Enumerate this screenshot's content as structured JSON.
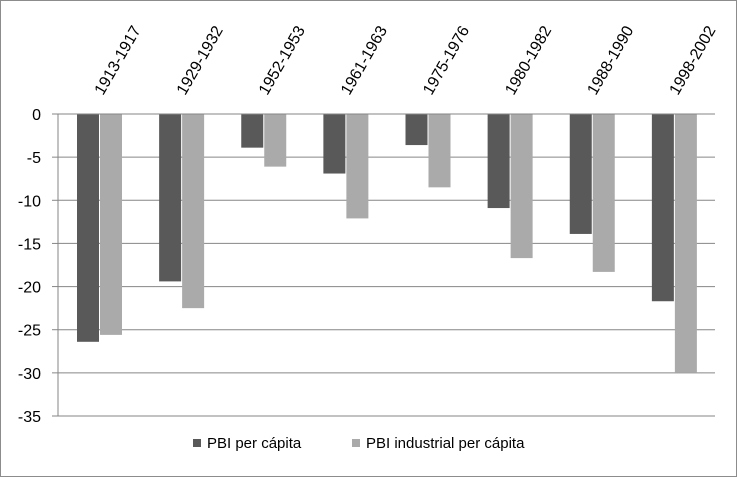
{
  "chart_data": {
    "type": "bar",
    "categories": [
      "1913-1917",
      "1929-1932",
      "1952-1953",
      "1961-1963",
      "1975-1976",
      "1980-1982",
      "1988-1990",
      "1998-2002"
    ],
    "series": [
      {
        "name": "PBI per cápita",
        "color": "#595959",
        "values": [
          -26.4,
          -19.4,
          -3.9,
          -6.9,
          -3.6,
          -10.9,
          -13.9,
          -21.7
        ]
      },
      {
        "name": "PBI industrial per cápita",
        "color": "#aaaaaa",
        "values": [
          -25.6,
          -22.5,
          -6.1,
          -12.1,
          -8.5,
          -16.7,
          -18.3,
          -30.0
        ]
      }
    ],
    "ylim": [
      -35,
      0
    ],
    "yticks": [
      0,
      -5,
      -10,
      -15,
      -20,
      -25,
      -30,
      -35
    ],
    "grid": true,
    "legend": "bottom",
    "title": "",
    "xlabel": "",
    "ylabel": ""
  }
}
